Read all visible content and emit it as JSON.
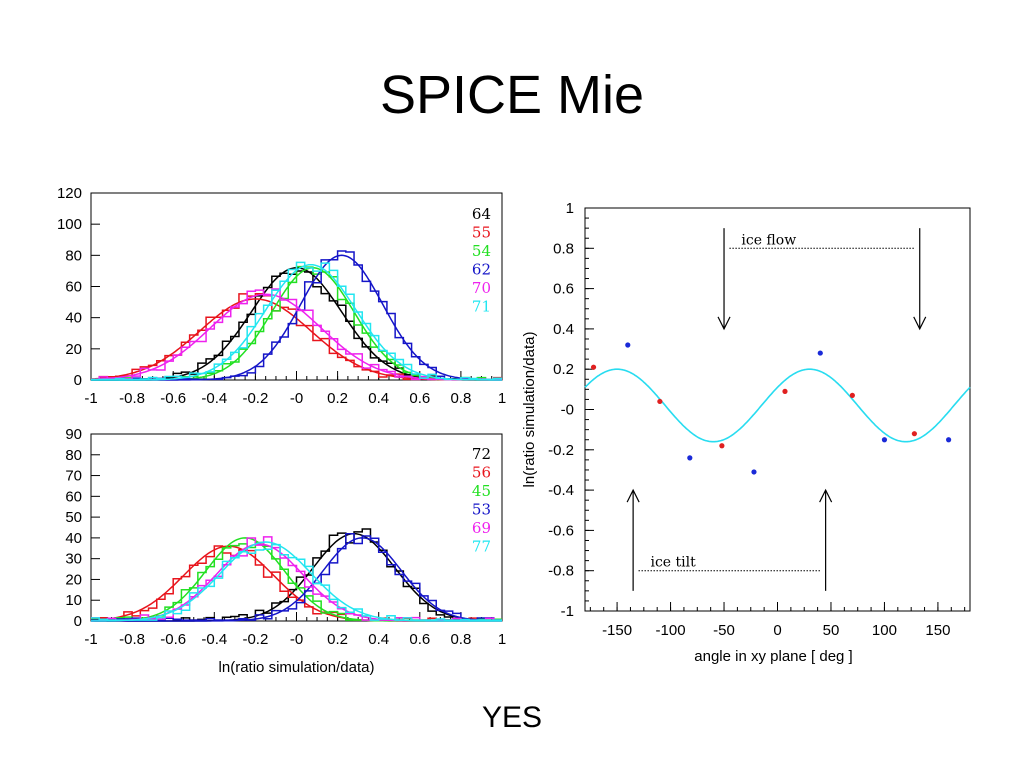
{
  "title": "SPICE Mie",
  "footer": "YES",
  "colors": {
    "black": "#000000",
    "red": "#e8141c",
    "green": "#22e022",
    "blue": "#1515c8",
    "magenta": "#ee22ee",
    "cyan": "#22e6f0",
    "fit_curve": "#28dcf0",
    "dot_red": "#e02020",
    "dot_blue": "#1a2ad8"
  },
  "chart_data": [
    {
      "type": "histogram",
      "xlim": [
        -1,
        1
      ],
      "ylim": [
        0,
        120
      ],
      "xticks": [
        "-1",
        "-0.8",
        "-0.6",
        "-0.4",
        "-0.2",
        "-0",
        "0.2",
        "0.4",
        "0.6",
        "0.8",
        "1"
      ],
      "yticks": [
        "0",
        "20",
        "40",
        "60",
        "80",
        "100",
        "120"
      ],
      "xlabel": "",
      "series": [
        {
          "name": "64",
          "color": "black",
          "mean": 0.0,
          "sigma": 0.22,
          "peak": 72
        },
        {
          "name": "55",
          "color": "red",
          "mean": -0.2,
          "sigma": 0.27,
          "peak": 52
        },
        {
          "name": "54",
          "color": "green",
          "mean": 0.08,
          "sigma": 0.2,
          "peak": 72
        },
        {
          "name": "62",
          "color": "blue",
          "mean": 0.22,
          "sigma": 0.2,
          "peak": 80
        },
        {
          "name": "70",
          "color": "magenta",
          "mean": -0.15,
          "sigma": 0.27,
          "peak": 55
        },
        {
          "name": "71",
          "color": "cyan",
          "mean": 0.07,
          "sigma": 0.22,
          "peak": 74
        }
      ]
    },
    {
      "type": "histogram",
      "xlim": [
        -1,
        1
      ],
      "ylim": [
        0,
        90
      ],
      "xticks": [
        "-1",
        "-0.8",
        "-0.6",
        "-0.4",
        "-0.2",
        "-0",
        "0.2",
        "0.4",
        "0.6",
        "0.8",
        "1"
      ],
      "yticks": [
        "0",
        "10",
        "20",
        "30",
        "40",
        "50",
        "60",
        "70",
        "80",
        "90"
      ],
      "xlabel": "ln(ratio simulation/data)",
      "series": [
        {
          "name": "72",
          "color": "black",
          "mean": 0.28,
          "sigma": 0.2,
          "peak": 42
        },
        {
          "name": "56",
          "color": "red",
          "mean": -0.33,
          "sigma": 0.22,
          "peak": 36
        },
        {
          "name": "45",
          "color": "green",
          "mean": -0.25,
          "sigma": 0.19,
          "peak": 40
        },
        {
          "name": "53",
          "color": "blue",
          "mean": 0.32,
          "sigma": 0.19,
          "peak": 40
        },
        {
          "name": "69",
          "color": "magenta",
          "mean": -0.18,
          "sigma": 0.21,
          "peak": 37
        },
        {
          "name": "77",
          "color": "cyan",
          "mean": -0.15,
          "sigma": 0.22,
          "peak": 38
        }
      ]
    },
    {
      "type": "scatter",
      "xlim": [
        -180,
        180
      ],
      "ylim": [
        -1,
        1
      ],
      "xticks": [
        "-150",
        "-100",
        "-50",
        "0",
        "50",
        "100",
        "150"
      ],
      "xtick_values": [
        -150,
        -100,
        -50,
        0,
        50,
        100,
        150
      ],
      "yticks": [
        "-1",
        "-0.8",
        "-0.6",
        "-0.4",
        "-0.2",
        "-0",
        "0.2",
        "0.4",
        "0.6",
        "0.8",
        "1"
      ],
      "xlabel": "angle in xy plane [ deg ]",
      "ylabel": "ln(ratio simulation/data)",
      "fit": {
        "amplitude": 0.18,
        "offset": 0.02,
        "period": 180,
        "phase": -150
      },
      "points_red": [
        [
          -172,
          0.21
        ],
        [
          -110,
          0.04
        ],
        [
          -52,
          -0.18
        ],
        [
          7,
          0.09
        ],
        [
          70,
          0.07
        ],
        [
          128,
          -0.12
        ]
      ],
      "points_blue": [
        [
          -140,
          0.32
        ],
        [
          -82,
          -0.24
        ],
        [
          -22,
          -0.31
        ],
        [
          40,
          0.28
        ],
        [
          100,
          -0.15
        ],
        [
          160,
          -0.15
        ]
      ],
      "annotations": {
        "ice_flow": {
          "label": "ice flow",
          "from_x": -45,
          "to_x": 128,
          "level": 0.8,
          "arrows_x": [
            -50,
            133
          ],
          "arrow_from": 0.9,
          "arrow_to": 0.4
        },
        "ice_tilt": {
          "label": "ice tilt",
          "from_x": -130,
          "to_x": 40,
          "level": -0.8,
          "arrows_x": [
            -135,
            45
          ],
          "arrow_from": -0.9,
          "arrow_to": -0.4
        }
      }
    }
  ]
}
